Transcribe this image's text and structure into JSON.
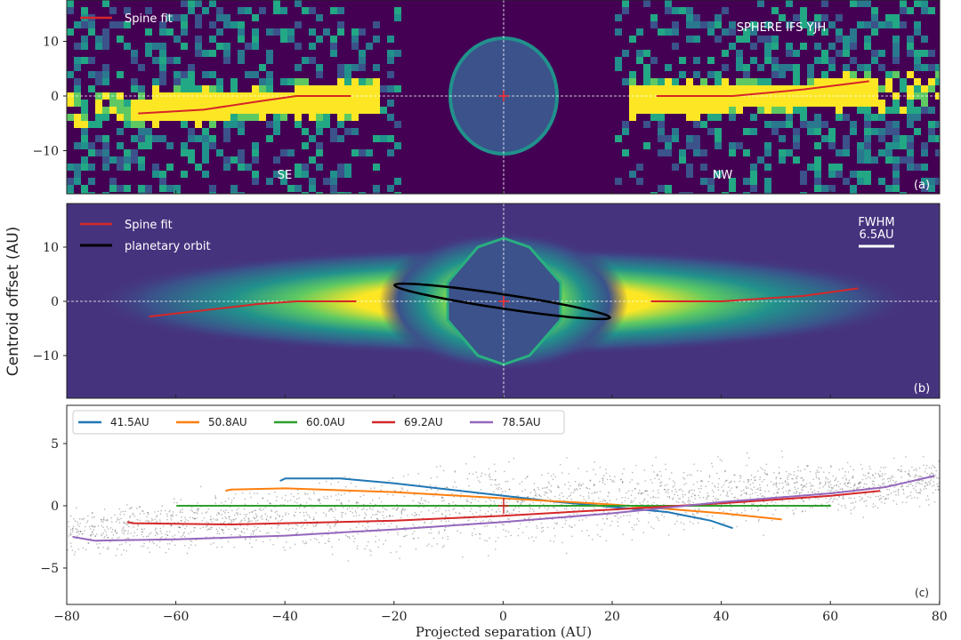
{
  "chart_data": [
    {
      "type": "heatmap",
      "panel_label": "(a)",
      "instrument": "SPHERE IFS YJH",
      "side_labels": [
        "SE",
        "NW"
      ],
      "legend": [
        "Spine fit"
      ],
      "ylim": [
        -18,
        18
      ],
      "xlim": [
        -80,
        80
      ],
      "yticks": [
        "10",
        "0",
        "−10"
      ],
      "spine_fit": {
        "SE": [
          [
            -67,
            -3.2
          ],
          [
            -55,
            -2.5
          ],
          [
            -45,
            -1
          ],
          [
            -38,
            0
          ],
          [
            -28,
            0
          ]
        ],
        "NW": [
          [
            28,
            0
          ],
          [
            42,
            0
          ],
          [
            55,
            1.2
          ],
          [
            67,
            2.7
          ]
        ]
      }
    },
    {
      "type": "heatmap",
      "panel_label": "(b)",
      "legend": [
        "Spine fit",
        "planetary orbit"
      ],
      "fwhm_label": "FWHM",
      "fwhm_value": "6.5AU",
      "ylim": [
        -18,
        18
      ],
      "xlim": [
        -80,
        80
      ],
      "yticks": [
        "10",
        "0",
        "−10"
      ],
      "spine_fit": {
        "SE": [
          [
            -65,
            -2.8
          ],
          [
            -45,
            -0.5
          ],
          [
            -38,
            0
          ],
          [
            -27,
            0
          ]
        ],
        "NW": [
          [
            27,
            0
          ],
          [
            40,
            0
          ],
          [
            55,
            1
          ],
          [
            65,
            2.4
          ]
        ]
      },
      "orbit": {
        "center": [
          0,
          0
        ],
        "endpoints": [
          [
            -20,
            3
          ],
          [
            19.5,
            -3
          ]
        ]
      }
    },
    {
      "type": "line",
      "panel_label": "(c)",
      "xlabel": "Projected separation (AU)",
      "ylabel": "Centroid offset (AU)",
      "xlim": [
        -80,
        80
      ],
      "ylim": [
        -8,
        8
      ],
      "xticks": [
        "−80",
        "−60",
        "−40",
        "−20",
        "0",
        "20",
        "40",
        "60",
        "80"
      ],
      "yticks": [
        "5",
        "0",
        "−5"
      ],
      "series": [
        {
          "name": "41.5AU",
          "color": "#1f77b4",
          "points": [
            [
              -41,
              2
            ],
            [
              -40,
              2.2
            ],
            [
              -30,
              2.2
            ],
            [
              -20,
              1.8
            ],
            [
              -10,
              1.3
            ],
            [
              0,
              0.8
            ],
            [
              10,
              0.3
            ],
            [
              20,
              -0.1
            ],
            [
              30,
              -0.5
            ],
            [
              38,
              -1.2
            ],
            [
              42,
              -1.8
            ]
          ]
        },
        {
          "name": "50.8AU",
          "color": "#ff7f0e",
          "points": [
            [
              -51,
              1.2
            ],
            [
              -50,
              1.3
            ],
            [
              -40,
              1.4
            ],
            [
              -20,
              1.1
            ],
            [
              0,
              0.6
            ],
            [
              20,
              0.1
            ],
            [
              40,
              -0.6
            ],
            [
              51,
              -1.1
            ]
          ]
        },
        {
          "name": "60.0AU",
          "color": "#2ca02c",
          "points": [
            [
              -60,
              0
            ],
            [
              60,
              0
            ]
          ]
        },
        {
          "name": "69.2AU",
          "color": "#d62728",
          "points": [
            [
              -69,
              -1.3
            ],
            [
              -68,
              -1.4
            ],
            [
              -50,
              -1.5
            ],
            [
              -20,
              -1.2
            ],
            [
              0,
              -0.8
            ],
            [
              20,
              -0.3
            ],
            [
              40,
              0.2
            ],
            [
              60,
              0.8
            ],
            [
              69,
              1.2
            ]
          ]
        },
        {
          "name": "78.5AU",
          "color": "#9467bd",
          "points": [
            [
              -79,
              -2.5
            ],
            [
              -75,
              -2.8
            ],
            [
              -60,
              -2.7
            ],
            [
              -40,
              -2.4
            ],
            [
              -20,
              -1.9
            ],
            [
              0,
              -1.3
            ],
            [
              20,
              -0.6
            ],
            [
              40,
              0.3
            ],
            [
              60,
              1.0
            ],
            [
              70,
              1.5
            ],
            [
              79,
              2.4
            ]
          ]
        }
      ]
    }
  ]
}
